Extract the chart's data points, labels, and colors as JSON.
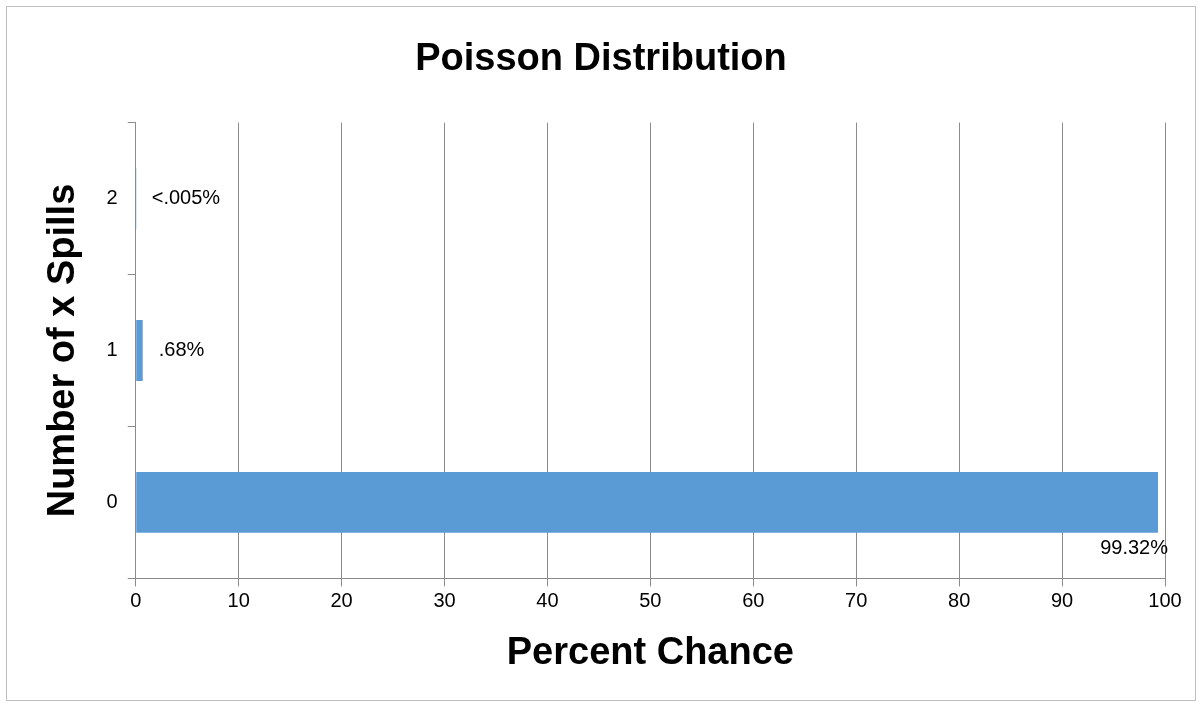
{
  "chart_data": {
    "type": "bar",
    "orientation": "horizontal",
    "title": "Poisson Distribution",
    "xlabel": "Percent Chance",
    "ylabel": "Number of x Spills",
    "categories": [
      "2",
      "1",
      "0"
    ],
    "series": [
      {
        "color": "#5b9bd5",
        "values": [
          0.004,
          0.68,
          99.32
        ],
        "value_labels": [
          "<.005%",
          ".68%",
          "99.32%"
        ]
      }
    ],
    "xlim": [
      0,
      100
    ],
    "xticks": [
      0,
      10,
      20,
      30,
      40,
      50,
      60,
      70,
      80,
      90,
      100
    ],
    "grid": "x",
    "legend": false
  }
}
